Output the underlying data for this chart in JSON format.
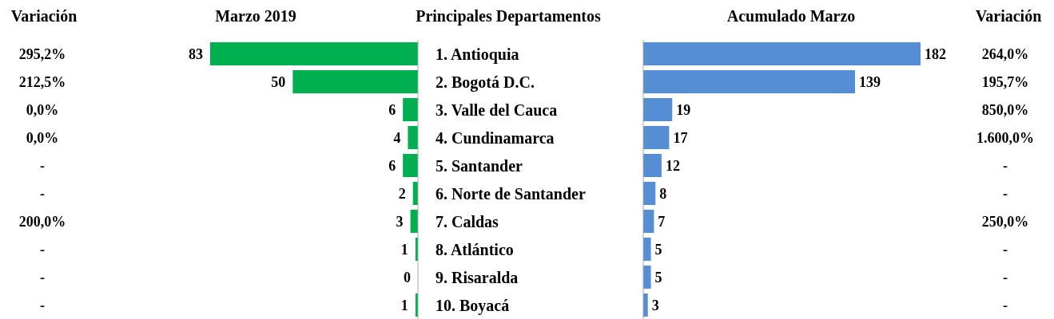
{
  "chart_data": [
    {
      "type": "other",
      "title": "Variación",
      "annotations": [
        "295,2%",
        "212,5%",
        "0,0%",
        "0,0%",
        "-",
        "-",
        "200,0%",
        "-",
        "-",
        "-"
      ]
    },
    {
      "type": "bar",
      "orientation": "horizontal",
      "title": "Marzo 2019",
      "ylabel": "Principales Departamentos",
      "categories": [
        "1. Antioquia",
        "2. Bogotá D.C.",
        "3. Valle del Cauca",
        "4. Cundinamarca",
        "5. Santander",
        "6. Norte de Santander",
        "7. Caldas",
        "8. Atlántico",
        "9. Risaralda",
        "10. Boyacá"
      ],
      "values": [
        83,
        50,
        6,
        4,
        6,
        2,
        3,
        1,
        0,
        1
      ],
      "color": "#00b050",
      "data_labels": true,
      "tick_labels": "y"
    },
    {
      "type": "bar",
      "orientation": "horizontal",
      "title": "Acumulado Marzo",
      "categories": [
        null,
        null,
        null,
        null,
        null,
        null,
        null,
        null,
        null,
        null
      ],
      "values": [
        182,
        139,
        19,
        17,
        12,
        8,
        7,
        5,
        5,
        3
      ],
      "color": "#558ed5",
      "data_labels": true,
      "tick_labels": false
    },
    {
      "type": "other",
      "title": "Variación",
      "annotations": [
        "264,0%",
        "195,7%",
        "850,0%",
        "1.600,0%",
        "-",
        "-",
        "250,0%",
        "-",
        "-",
        "-"
      ]
    }
  ]
}
